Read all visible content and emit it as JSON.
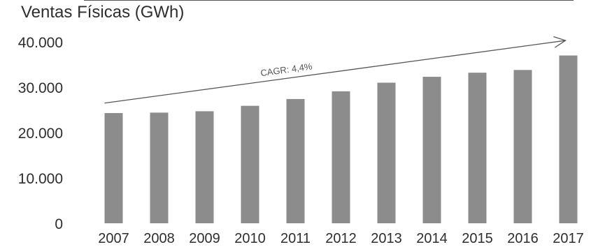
{
  "chart_data": {
    "type": "bar",
    "title": "Ventas Físicas (GWh)",
    "xlabel": "",
    "ylabel": "",
    "categories": [
      "2007",
      "2008",
      "2009",
      "2010",
      "2011",
      "2012",
      "2013",
      "2014",
      "2015",
      "2016",
      "2017"
    ],
    "values": [
      24300,
      24400,
      24700,
      25900,
      27400,
      29100,
      31000,
      32300,
      33200,
      33800,
      37000
    ],
    "ylim": [
      0,
      40000
    ],
    "yticks": [
      0,
      10000,
      20000,
      30000,
      40000
    ],
    "ytick_labels": [
      "0",
      "10.000",
      "20.000",
      "30.000",
      "40.000"
    ],
    "grid": false,
    "legend": "none",
    "bar_color": "#8c8c8c",
    "annotation": {
      "text": "CAGR: 4,4%",
      "type": "trend-arrow",
      "from": {
        "x": "2007",
        "y": 26500
      },
      "to": {
        "x": "2017",
        "y": 40300
      }
    }
  }
}
